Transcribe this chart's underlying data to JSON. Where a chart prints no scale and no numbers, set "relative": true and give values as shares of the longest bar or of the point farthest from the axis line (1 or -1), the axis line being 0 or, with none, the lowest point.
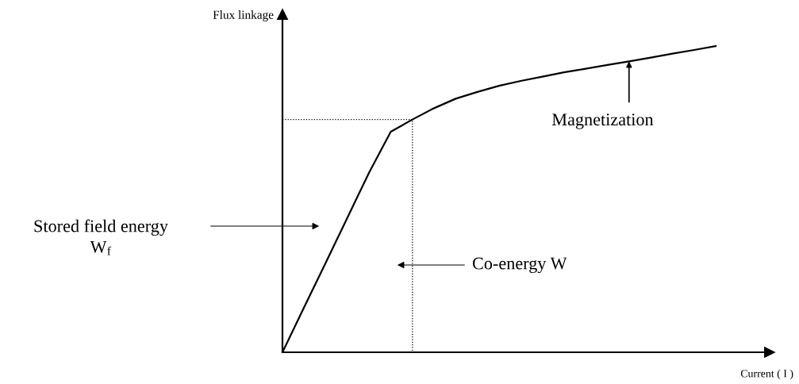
{
  "chart_data": {
    "type": "line",
    "relative": true,
    "xlabel": "Current ( I )",
    "ylabel": "Flux linkage",
    "categories": [
      null,
      null,
      null,
      null,
      null,
      null,
      null,
      null,
      null,
      null,
      null,
      null,
      null,
      null,
      null,
      null,
      null,
      null,
      null,
      null,
      null
    ],
    "series": [
      {
        "color": "#000000",
        "values": [
          0,
          0.147,
          0.293,
          0.44,
          0.587,
          0.72,
          0.76,
          0.797,
          0.828,
          0.85,
          0.87,
          0.886,
          0.9,
          0.914,
          0.926,
          0.938,
          0.95,
          0.962,
          0.975,
          0.987,
          1
        ]
      }
    ],
    "ref_lines": [
      {
        "axis": "y",
        "value": 0.76,
        "color": "#000000",
        "line_style": "dotted"
      }
    ],
    "annotations": [
      {
        "text": "Magnetization",
        "y": 0.95
      },
      "Stored field energy\nW$_{f}$",
      "Co-energy W"
    ]
  }
}
